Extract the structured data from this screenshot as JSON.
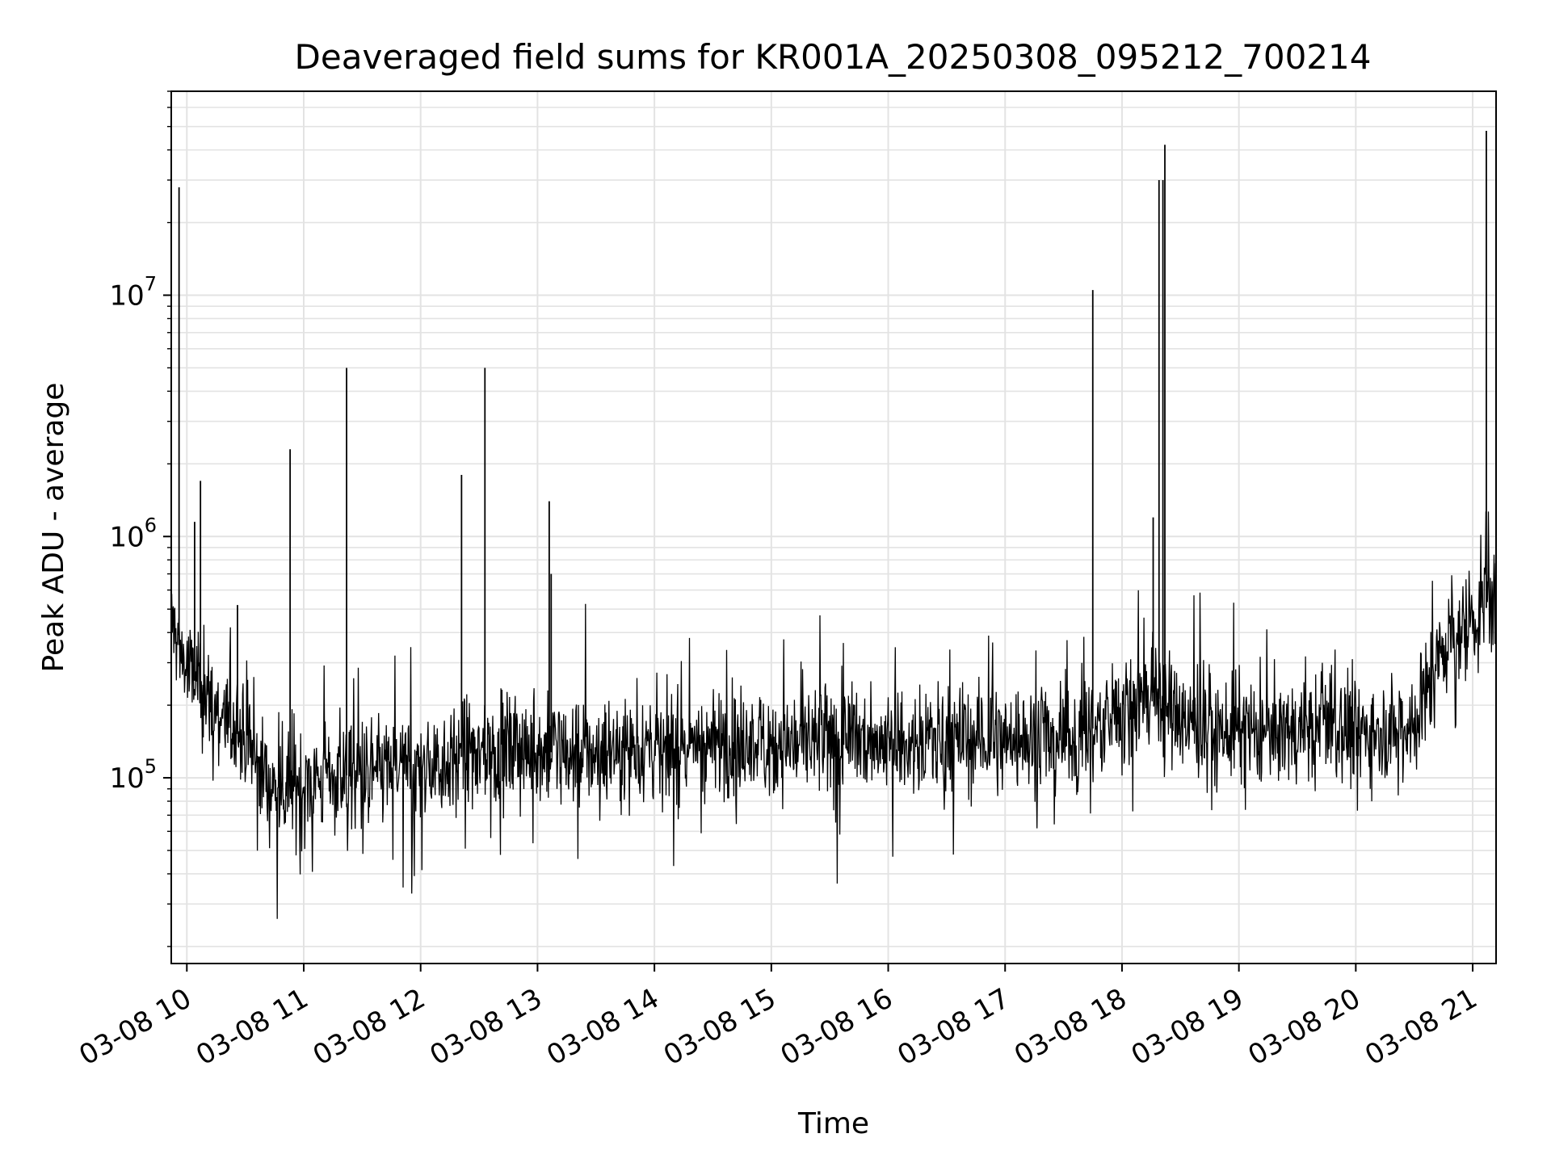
{
  "chart_data": {
    "type": "line",
    "title": "Deaveraged field sums for KR001A_20250308_095212_700214",
    "xlabel": "Time",
    "ylabel": "Peak ADU - average",
    "yscale": "log",
    "xlim": [
      "03-08 09:52",
      "03-08 21:12"
    ],
    "ylim": [
      17000,
      70000000
    ],
    "grid": true,
    "grid_minor": true,
    "line_color": "#000000",
    "x_ticks": [
      "03-08 10",
      "03-08 11",
      "03-08 12",
      "03-08 13",
      "03-08 14",
      "03-08 15",
      "03-08 16",
      "03-08 17",
      "03-08 18",
      "03-08 19",
      "03-08 20",
      "03-08 21"
    ],
    "y_ticks": [
      {
        "base": "10",
        "exp": "5",
        "value": 100000
      },
      {
        "base": "10",
        "exp": "6",
        "value": 1000000
      },
      {
        "base": "10",
        "exp": "7",
        "value": 10000000
      }
    ],
    "series": [
      {
        "x": [
          "03-08 09:52",
          "03-08 10:00",
          "03-08 10:15",
          "03-08 10:30",
          "03-08 10:45",
          "03-08 11:00",
          "03-08 11:15",
          "03-08 11:30",
          "03-08 11:45",
          "03-08 12:00",
          "03-08 12:15",
          "03-08 12:30",
          "03-08 12:45",
          "03-08 13:00",
          "03-08 13:15",
          "03-08 13:30",
          "03-08 13:45",
          "03-08 14:00",
          "03-08 14:30",
          "03-08 15:00",
          "03-08 15:30",
          "03-08 16:00",
          "03-08 16:30",
          "03-08 17:00",
          "03-08 17:30",
          "03-08 17:45",
          "03-08 18:00",
          "03-08 18:15",
          "03-08 18:30",
          "03-08 18:45",
          "03-08 19:00",
          "03-08 19:30",
          "03-08 20:00",
          "03-08 20:30",
          "03-08 20:45",
          "03-08 21:00",
          "03-08 21:12"
        ],
        "y": [
          450000,
          280000,
          190000,
          140000,
          90000,
          95000,
          100000,
          105000,
          110000,
          110000,
          120000,
          125000,
          130000,
          130000,
          125000,
          130000,
          135000,
          135000,
          140000,
          140000,
          140000,
          145000,
          145000,
          145000,
          150000,
          160000,
          180000,
          230000,
          170000,
          160000,
          155000,
          155000,
          155000,
          170000,
          350000,
          450000,
          550000
        ],
        "noise_decades": 0.33
      },
      {
        "spikes": [
          {
            "x": "03-08 09:56",
            "y": 28000000
          },
          {
            "x": "03-08 10:07",
            "y": 1700000
          },
          {
            "x": "03-08 10:04",
            "y": 1150000
          },
          {
            "x": "03-08 10:26",
            "y": 520000
          },
          {
            "x": "03-08 10:53",
            "y": 2300000
          },
          {
            "x": "03-08 11:22",
            "y": 5000000
          },
          {
            "x": "03-08 12:21",
            "y": 1800000
          },
          {
            "x": "03-08 12:33",
            "y": 5000000
          },
          {
            "x": "03-08 13:06",
            "y": 1400000
          },
          {
            "x": "03-08 13:07",
            "y": 700000
          },
          {
            "x": "03-08 17:45",
            "y": 10500000
          },
          {
            "x": "03-08 18:16",
            "y": 1200000
          },
          {
            "x": "03-08 18:19",
            "y": 30000000
          },
          {
            "x": "03-08 18:21",
            "y": 30000000
          },
          {
            "x": "03-08 18:22",
            "y": 42000000
          },
          {
            "x": "03-08 21:07",
            "y": 48000000
          }
        ]
      }
    ]
  }
}
